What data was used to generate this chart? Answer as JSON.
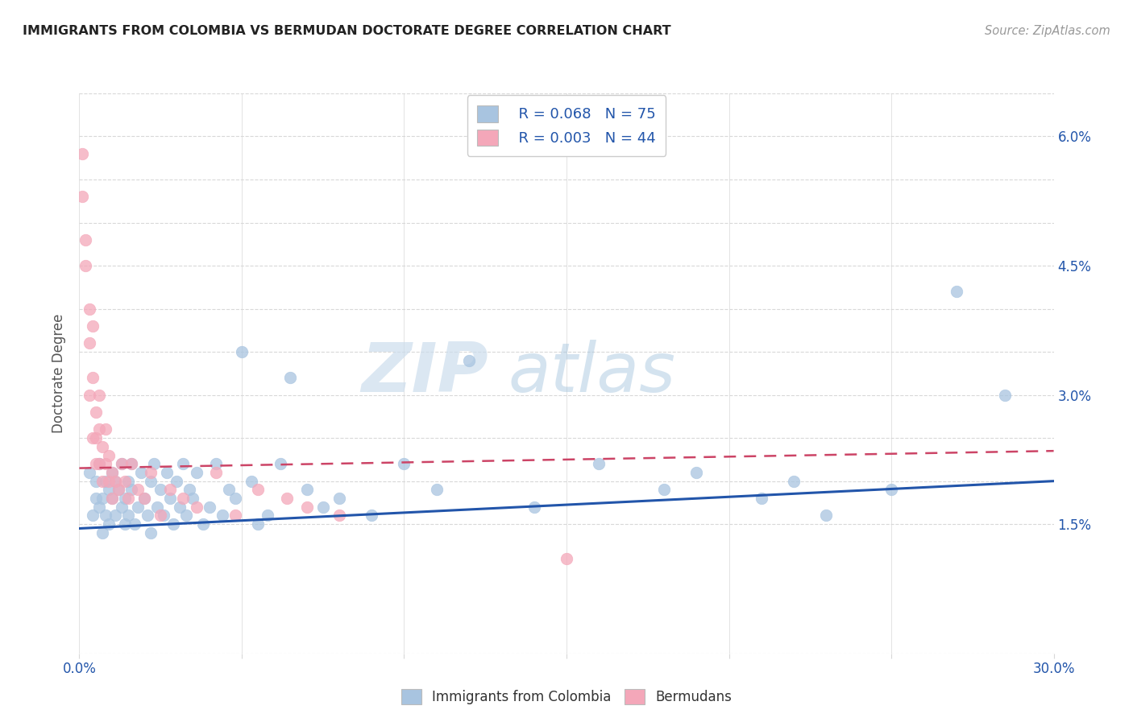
{
  "title": "IMMIGRANTS FROM COLOMBIA VS BERMUDAN DOCTORATE DEGREE CORRELATION CHART",
  "source_text": "Source: ZipAtlas.com",
  "ylabel": "Doctorate Degree",
  "xlim": [
    0.0,
    0.3
  ],
  "ylim": [
    0.0,
    0.065
  ],
  "xticks": [
    0.0,
    0.05,
    0.1,
    0.15,
    0.2,
    0.25,
    0.3
  ],
  "xticklabels": [
    "0.0%",
    "",
    "",
    "",
    "",
    "",
    "30.0%"
  ],
  "ytick_vals": [
    0.0,
    0.015,
    0.02,
    0.025,
    0.03,
    0.035,
    0.04,
    0.045,
    0.05,
    0.055,
    0.06,
    0.065
  ],
  "yticklabels_right": [
    "",
    "1.5%",
    "",
    "",
    "3.0%",
    "",
    "",
    "4.5%",
    "",
    "",
    "6.0%",
    ""
  ],
  "blue_color": "#a8c4e0",
  "pink_color": "#f4a7b9",
  "blue_line_color": "#2255aa",
  "pink_line_color": "#cc4466",
  "legend_r_blue": "R = 0.068",
  "legend_n_blue": "N = 75",
  "legend_r_pink": "R = 0.003",
  "legend_n_pink": "N = 44",
  "watermark_zip": "ZIP",
  "watermark_atlas": "atlas",
  "background_color": "#ffffff",
  "grid_color": "#d8d8d8",
  "title_color": "#222222",
  "axis_label_color": "#555555",
  "tick_color": "#2255aa",
  "blue_line_x": [
    0.0,
    0.3
  ],
  "blue_line_y": [
    0.0145,
    0.02
  ],
  "pink_line_x": [
    0.0,
    0.3
  ],
  "pink_line_y": [
    0.0215,
    0.0235
  ],
  "blue_scatter_x": [
    0.003,
    0.004,
    0.005,
    0.005,
    0.006,
    0.006,
    0.007,
    0.007,
    0.008,
    0.008,
    0.009,
    0.009,
    0.01,
    0.01,
    0.011,
    0.011,
    0.012,
    0.013,
    0.013,
    0.014,
    0.014,
    0.015,
    0.015,
    0.016,
    0.016,
    0.017,
    0.018,
    0.019,
    0.02,
    0.021,
    0.022,
    0.022,
    0.023,
    0.024,
    0.025,
    0.026,
    0.027,
    0.028,
    0.029,
    0.03,
    0.031,
    0.032,
    0.033,
    0.034,
    0.035,
    0.036,
    0.038,
    0.04,
    0.042,
    0.044,
    0.046,
    0.048,
    0.05,
    0.053,
    0.055,
    0.058,
    0.062,
    0.065,
    0.07,
    0.075,
    0.08,
    0.09,
    0.1,
    0.11,
    0.12,
    0.14,
    0.16,
    0.18,
    0.19,
    0.21,
    0.22,
    0.23,
    0.25,
    0.27,
    0.285
  ],
  "blue_scatter_y": [
    0.021,
    0.016,
    0.02,
    0.018,
    0.017,
    0.022,
    0.014,
    0.018,
    0.02,
    0.016,
    0.019,
    0.015,
    0.021,
    0.018,
    0.016,
    0.02,
    0.019,
    0.017,
    0.022,
    0.015,
    0.018,
    0.02,
    0.016,
    0.019,
    0.022,
    0.015,
    0.017,
    0.021,
    0.018,
    0.016,
    0.02,
    0.014,
    0.022,
    0.017,
    0.019,
    0.016,
    0.021,
    0.018,
    0.015,
    0.02,
    0.017,
    0.022,
    0.016,
    0.019,
    0.018,
    0.021,
    0.015,
    0.017,
    0.022,
    0.016,
    0.019,
    0.018,
    0.035,
    0.02,
    0.015,
    0.016,
    0.022,
    0.032,
    0.019,
    0.017,
    0.018,
    0.016,
    0.022,
    0.019,
    0.034,
    0.017,
    0.022,
    0.019,
    0.021,
    0.018,
    0.02,
    0.016,
    0.019,
    0.042,
    0.03
  ],
  "pink_scatter_x": [
    0.001,
    0.001,
    0.002,
    0.002,
    0.003,
    0.003,
    0.003,
    0.004,
    0.004,
    0.004,
    0.005,
    0.005,
    0.005,
    0.006,
    0.006,
    0.006,
    0.007,
    0.007,
    0.008,
    0.008,
    0.009,
    0.009,
    0.01,
    0.01,
    0.011,
    0.012,
    0.013,
    0.014,
    0.015,
    0.016,
    0.018,
    0.02,
    0.022,
    0.025,
    0.028,
    0.032,
    0.036,
    0.042,
    0.048,
    0.055,
    0.064,
    0.07,
    0.08,
    0.15
  ],
  "pink_scatter_y": [
    0.058,
    0.053,
    0.048,
    0.045,
    0.036,
    0.03,
    0.04,
    0.025,
    0.038,
    0.032,
    0.022,
    0.028,
    0.025,
    0.022,
    0.026,
    0.03,
    0.02,
    0.024,
    0.022,
    0.026,
    0.02,
    0.023,
    0.018,
    0.021,
    0.02,
    0.019,
    0.022,
    0.02,
    0.018,
    0.022,
    0.019,
    0.018,
    0.021,
    0.016,
    0.019,
    0.018,
    0.017,
    0.021,
    0.016,
    0.019,
    0.018,
    0.017,
    0.016,
    0.011
  ]
}
